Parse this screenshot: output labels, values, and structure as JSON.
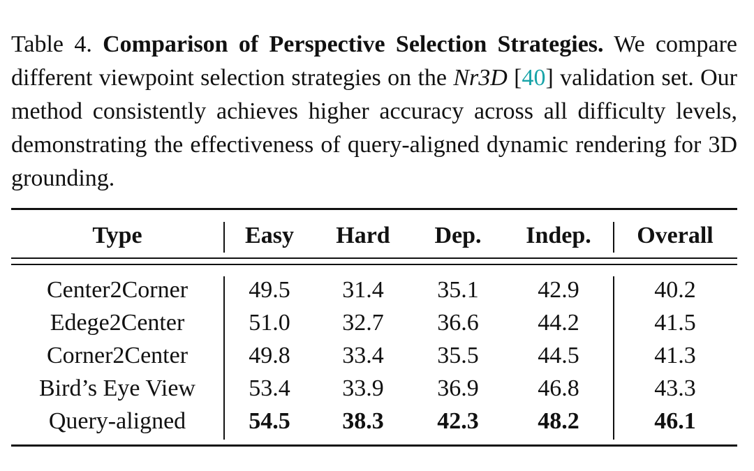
{
  "caption": {
    "label": "Table 4.",
    "title": "Comparison of Perspective Selection Strategies.",
    "text_a": " We compare different viewpoint selection strategies on the ",
    "dataset": "Nr3D",
    "text_b": " [",
    "citation": "40",
    "text_c": "] validation set.  Our method consistently achieves higher accuracy across all difficulty levels, demonstrating the effectiveness of query-aligned dynamic rendering for 3D grounding."
  },
  "table": {
    "columns": [
      "Type",
      "Easy",
      "Hard",
      "Dep.",
      "Indep.",
      "Overall"
    ],
    "rows": [
      {
        "type": "Center2Corner",
        "values": [
          "49.5",
          "31.4",
          "35.1",
          "42.9",
          "40.2"
        ],
        "best": false
      },
      {
        "type": "Edege2Center",
        "values": [
          "51.0",
          "32.7",
          "36.6",
          "44.2",
          "41.5"
        ],
        "best": false
      },
      {
        "type": "Corner2Center",
        "values": [
          "49.8",
          "33.4",
          "35.5",
          "44.5",
          "41.3"
        ],
        "best": false
      },
      {
        "type": "Bird’s Eye View",
        "values": [
          "53.4",
          "33.9",
          "36.9",
          "46.8",
          "43.3"
        ],
        "best": false
      },
      {
        "type": "Query-aligned",
        "values": [
          "54.5",
          "38.3",
          "42.3",
          "48.2",
          "46.1"
        ],
        "best": true
      }
    ]
  }
}
